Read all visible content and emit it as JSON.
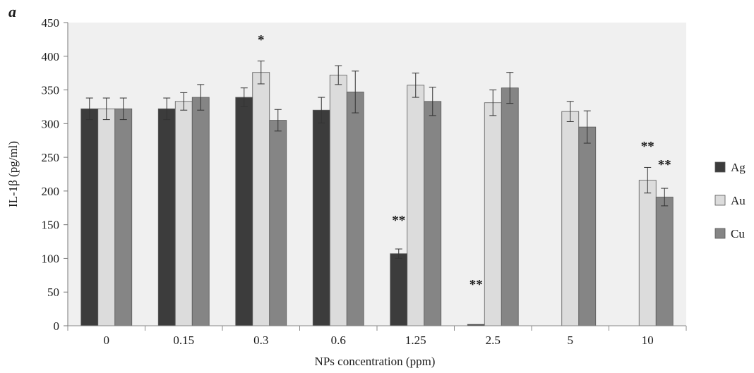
{
  "chart_data": {
    "type": "bar",
    "panel_label": "a",
    "xlabel": "NPs concentration (ppm)",
    "ylabel": "IL-1β (pg/ml)",
    "ylim": [
      0,
      450
    ],
    "yticks": [
      0,
      50,
      100,
      150,
      200,
      250,
      300,
      350,
      400,
      450
    ],
    "categories": [
      "0",
      "0.15",
      "0.3",
      "0.6",
      "1.25",
      "2.5",
      "5",
      "10"
    ],
    "legend_position": "right",
    "grid": false,
    "background_color": "#f0f0f0",
    "series": [
      {
        "name": "Ag",
        "color": "#3c3c3c",
        "values": [
          322,
          322,
          339,
          320,
          107,
          2,
          null,
          null
        ],
        "errors": [
          16,
          16,
          14,
          19,
          7,
          0,
          null,
          null
        ]
      },
      {
        "name": "Au",
        "color": "#dcdcdc",
        "values": [
          322,
          333,
          376,
          372,
          357,
          331,
          318,
          216
        ],
        "errors": [
          16,
          13,
          17,
          14,
          18,
          19,
          15,
          19
        ]
      },
      {
        "name": "Cu",
        "color": "#858585",
        "values": [
          322,
          339,
          305,
          347,
          333,
          353,
          295,
          191
        ],
        "errors": [
          16,
          19,
          16,
          31,
          21,
          23,
          24,
          13
        ]
      }
    ],
    "annotations": [
      {
        "text": "*",
        "category": "0.3",
        "series": "Au",
        "y": 418
      },
      {
        "text": "**",
        "category": "1.25",
        "series": "Ag",
        "y": 150
      },
      {
        "text": "**",
        "category": "2.5",
        "series": "Ag",
        "y": 55
      },
      {
        "text": "**",
        "category": "10",
        "series": "Au",
        "y": 260
      },
      {
        "text": "**",
        "category": "10",
        "series": "Cu",
        "y": 233
      }
    ]
  }
}
